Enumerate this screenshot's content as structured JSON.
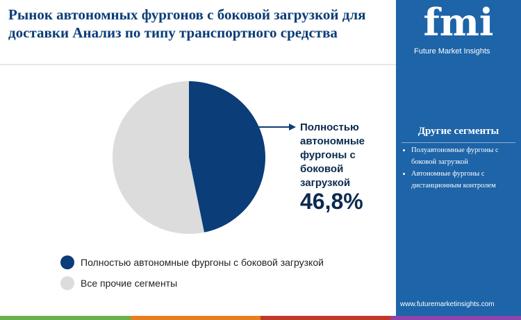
{
  "chart_data": {
    "type": "pie",
    "title": "Рынок автономных фургонов с боковой загрузкой для доставки Анализ по типу транспортного средства",
    "categories": [
      "Полностью автономные фургоны с боковой загрузкой",
      "Все прочие сегменты"
    ],
    "values": [
      46.8,
      53.2
    ],
    "value_labels": [
      "46,8%",
      null
    ],
    "colors": [
      "#0b3d78",
      "#dcdcdc"
    ]
  },
  "sidebar": {
    "logo": "fmi",
    "brand": "Future Market Insights",
    "heading": "Другие сегменты",
    "items": [
      "Полуавтономные фургоны с боковой загрузкой",
      "Автономные фургоны с дистанционным контролем"
    ],
    "url": "www.futuremarketinsights.com"
  }
}
